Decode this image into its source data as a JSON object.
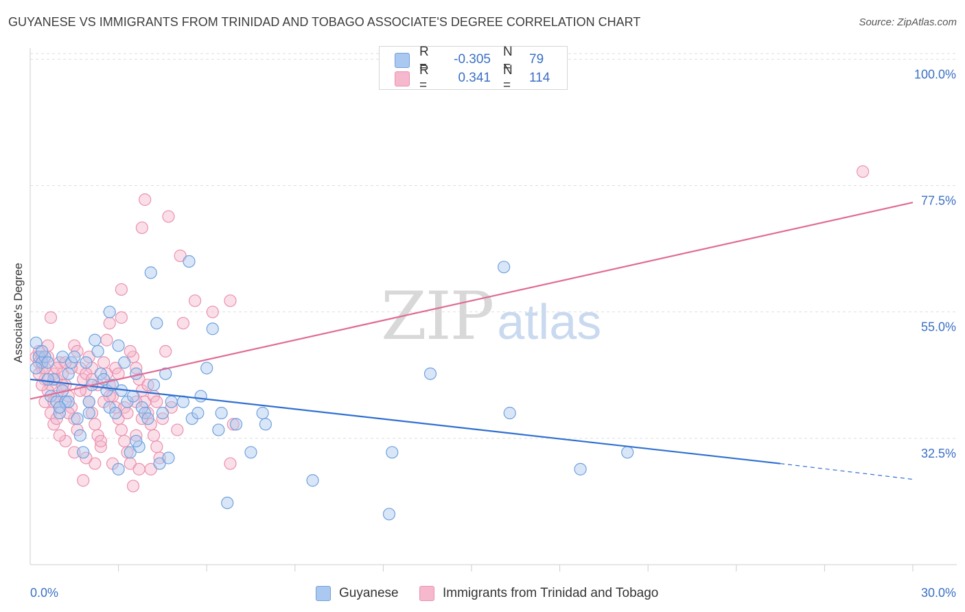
{
  "title": "GUYANESE VS IMMIGRANTS FROM TRINIDAD AND TOBAGO ASSOCIATE'S DEGREE CORRELATION CHART",
  "source": "Source: ZipAtlas.com",
  "watermark": {
    "zip": "ZIP",
    "atlas": "atlas"
  },
  "colors": {
    "blue_fill": "#aac8f0",
    "blue_stroke": "#6fa0dc",
    "blue_line": "#2f6fd0",
    "pink_fill": "#f5b8cc",
    "pink_stroke": "#eb8fae",
    "pink_line": "#e06b94",
    "tick_label": "#3a6fc4",
    "grid": "#dedede"
  },
  "stats": [
    {
      "series": "Guyanese",
      "color": "#aac8f0",
      "border": "#6fa0dc",
      "r_label": "R =",
      "r": "-0.305",
      "n_label": "N =",
      "n": "79"
    },
    {
      "series": "Immigrants from Trinidad and Tobago",
      "color": "#f5b8cc",
      "border": "#eb8fae",
      "r_label": "R =",
      "r": "0.341",
      "n_label": "N =",
      "n": "114"
    }
  ],
  "legend": [
    {
      "label": "Guyanese",
      "color": "#aac8f0",
      "border": "#6fa0dc"
    },
    {
      "label": "Immigrants from Trinidad and Tobago",
      "color": "#f5b8cc",
      "border": "#eb8fae"
    }
  ],
  "chart_data": {
    "type": "scatter",
    "title": "GUYANESE VS IMMIGRANTS FROM TRINIDAD AND TOBAGO ASSOCIATE'S DEGREE CORRELATION CHART",
    "xlabel": "",
    "ylabel": "Associate's Degree",
    "xlim": [
      0.0,
      30.0
    ],
    "ylim": [
      10.0,
      102.0
    ],
    "x_tick_labels": [
      "0.0%",
      "30.0%"
    ],
    "y_ticks": [
      32.5,
      55.0,
      77.5,
      100.0
    ],
    "y_tick_labels": [
      "32.5%",
      "55.0%",
      "77.5%",
      "100.0%"
    ],
    "grid": true,
    "legend_position": "bottom",
    "series": [
      {
        "name": "Guyanese",
        "points": [
          [
            0.2,
            49.5
          ],
          [
            0.3,
            47
          ],
          [
            0.4,
            46
          ],
          [
            0.2,
            45
          ],
          [
            0.5,
            47
          ],
          [
            0.6,
            46
          ],
          [
            0.8,
            43
          ],
          [
            0.7,
            40
          ],
          [
            0.9,
            39
          ],
          [
            1.0,
            37
          ],
          [
            1.1,
            41
          ],
          [
            1.2,
            39
          ],
          [
            1.1,
            47
          ],
          [
            1.3,
            44
          ],
          [
            1.4,
            46
          ],
          [
            1.5,
            47
          ],
          [
            1.6,
            36
          ],
          [
            1.7,
            33
          ],
          [
            1.8,
            30
          ],
          [
            1.9,
            46
          ],
          [
            2.0,
            39
          ],
          [
            2.1,
            42
          ],
          [
            2.2,
            50
          ],
          [
            2.3,
            48
          ],
          [
            2.4,
            44
          ],
          [
            2.5,
            43
          ],
          [
            2.6,
            41
          ],
          [
            2.7,
            38
          ],
          [
            2.8,
            42
          ],
          [
            2.9,
            37
          ],
          [
            3.0,
            27
          ],
          [
            3.0,
            49
          ],
          [
            3.1,
            41
          ],
          [
            3.2,
            46
          ],
          [
            3.3,
            39
          ],
          [
            3.4,
            30
          ],
          [
            3.5,
            40
          ],
          [
            3.6,
            44
          ],
          [
            3.7,
            31
          ],
          [
            3.8,
            38
          ],
          [
            3.9,
            37
          ],
          [
            4.0,
            36
          ],
          [
            4.1,
            62
          ],
          [
            4.2,
            42
          ],
          [
            4.3,
            53
          ],
          [
            4.4,
            28
          ],
          [
            4.5,
            37
          ],
          [
            4.6,
            44
          ],
          [
            4.7,
            29
          ],
          [
            4.8,
            39
          ],
          [
            5.2,
            39
          ],
          [
            5.4,
            64
          ],
          [
            5.5,
            36
          ],
          [
            5.7,
            37
          ],
          [
            5.8,
            40
          ],
          [
            6.0,
            45
          ],
          [
            6.2,
            52
          ],
          [
            6.4,
            34
          ],
          [
            6.5,
            37
          ],
          [
            6.7,
            21
          ],
          [
            7.0,
            35
          ],
          [
            7.5,
            30
          ],
          [
            7.9,
            37
          ],
          [
            8.0,
            35
          ],
          [
            9.6,
            25
          ],
          [
            12.2,
            19
          ],
          [
            12.3,
            30
          ],
          [
            13.6,
            44
          ],
          [
            16.1,
            63
          ],
          [
            16.3,
            37
          ],
          [
            18.7,
            27
          ],
          [
            20.3,
            30
          ],
          [
            2.7,
            55
          ],
          [
            1.3,
            39
          ],
          [
            0.6,
            43
          ],
          [
            1.0,
            38
          ],
          [
            0.4,
            48
          ],
          [
            2.0,
            37
          ],
          [
            3.6,
            32
          ]
        ]
      },
      {
        "name": "Immigrants from Trinidad and Tobago",
        "points": [
          [
            0.2,
            47
          ],
          [
            0.3,
            46
          ],
          [
            0.4,
            45
          ],
          [
            0.5,
            43
          ],
          [
            0.3,
            48
          ],
          [
            0.6,
            49
          ],
          [
            0.7,
            42
          ],
          [
            0.8,
            44
          ],
          [
            0.9,
            40
          ],
          [
            1.0,
            38
          ],
          [
            0.5,
            39
          ],
          [
            0.6,
            41
          ],
          [
            0.7,
            37
          ],
          [
            0.8,
            35
          ],
          [
            0.9,
            43
          ],
          [
            1.0,
            46
          ],
          [
            1.1,
            44
          ],
          [
            1.2,
            42
          ],
          [
            1.3,
            40
          ],
          [
            1.4,
            38
          ],
          [
            1.5,
            36
          ],
          [
            1.6,
            34
          ],
          [
            1.7,
            45
          ],
          [
            1.8,
            43
          ],
          [
            1.9,
            41
          ],
          [
            2.0,
            39
          ],
          [
            2.1,
            37
          ],
          [
            2.2,
            35
          ],
          [
            2.3,
            33
          ],
          [
            2.4,
            31
          ],
          [
            2.5,
            46
          ],
          [
            2.6,
            44
          ],
          [
            2.7,
            42
          ],
          [
            2.8,
            40
          ],
          [
            2.9,
            38
          ],
          [
            3.0,
            36
          ],
          [
            3.1,
            34
          ],
          [
            3.2,
            32
          ],
          [
            3.3,
            30
          ],
          [
            3.4,
            28
          ],
          [
            3.5,
            47
          ],
          [
            3.6,
            45
          ],
          [
            3.7,
            43
          ],
          [
            3.8,
            41
          ],
          [
            3.9,
            39
          ],
          [
            4.0,
            37
          ],
          [
            4.1,
            35
          ],
          [
            4.2,
            33
          ],
          [
            4.3,
            31
          ],
          [
            4.4,
            29
          ],
          [
            0.7,
            54
          ],
          [
            1.5,
            49
          ],
          [
            2.1,
            45
          ],
          [
            2.7,
            53
          ],
          [
            3.1,
            59
          ],
          [
            3.1,
            54
          ],
          [
            3.9,
            75
          ],
          [
            3.8,
            70
          ],
          [
            4.7,
            72
          ],
          [
            5.1,
            65
          ],
          [
            5.2,
            53
          ],
          [
            5.6,
            57
          ],
          [
            6.2,
            55
          ],
          [
            6.8,
            57
          ],
          [
            6.9,
            35
          ],
          [
            6.8,
            28
          ],
          [
            4.6,
            48
          ],
          [
            4.2,
            40
          ],
          [
            3.4,
            48
          ],
          [
            2.6,
            50
          ],
          [
            1.2,
            32
          ],
          [
            1.8,
            25
          ],
          [
            2.2,
            28
          ],
          [
            2.8,
            28
          ],
          [
            3.5,
            24
          ],
          [
            3.7,
            27
          ],
          [
            4.1,
            27
          ],
          [
            1.9,
            29
          ],
          [
            2.4,
            32
          ],
          [
            1.1,
            42
          ],
          [
            0.9,
            45
          ],
          [
            0.4,
            42
          ],
          [
            0.3,
            44
          ],
          [
            1.6,
            48
          ],
          [
            2.0,
            47
          ],
          [
            2.9,
            45
          ],
          [
            3.6,
            39
          ],
          [
            4.5,
            36
          ],
          [
            1.3,
            37
          ],
          [
            0.8,
            39
          ],
          [
            0.6,
            47
          ],
          [
            1.4,
            45
          ],
          [
            1.7,
            41
          ],
          [
            2.3,
            42
          ],
          [
            3.2,
            38
          ],
          [
            3.8,
            36
          ],
          [
            4.0,
            42
          ],
          [
            0.5,
            45
          ],
          [
            1.0,
            33
          ],
          [
            1.5,
            30
          ],
          [
            2.5,
            39
          ],
          [
            3.3,
            37
          ],
          [
            4.8,
            38
          ],
          [
            5.0,
            34
          ],
          [
            0.9,
            36
          ],
          [
            1.9,
            44
          ],
          [
            2.7,
            40
          ],
          [
            3.6,
            33
          ],
          [
            4.3,
            39
          ],
          [
            28.3,
            80
          ],
          [
            1.2,
            46
          ],
          [
            0.4,
            47
          ],
          [
            2.1,
            43
          ],
          [
            3.0,
            44
          ]
        ]
      }
    ],
    "trend_lines": [
      {
        "series": "Guyanese",
        "x": [
          0.0,
          25.5
        ],
        "y": [
          43.0,
          28.0
        ],
        "dashed_extension_x": [
          25.5,
          30.0
        ],
        "dashed_extension_y": [
          28.0,
          25.2
        ]
      },
      {
        "series": "Immigrants from Trinidad and Tobago",
        "x": [
          0.0,
          30.0
        ],
        "y": [
          39.5,
          74.5
        ]
      }
    ]
  }
}
